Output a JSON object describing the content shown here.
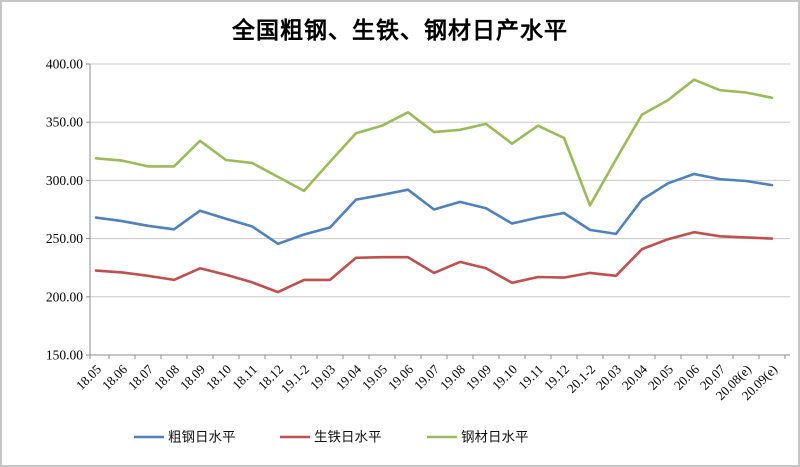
{
  "page": {
    "title": "全国粗钢、生铁、钢材日产水平"
  },
  "chart_data": {
    "type": "line",
    "title": "全国粗钢、生铁、钢材日产水平",
    "categories": [
      "18.05",
      "18.06",
      "18.07",
      "18.08",
      "18.09",
      "18.10",
      "18.11",
      "18.12",
      "19.1-2",
      "19.03",
      "19.04",
      "19.05",
      "19.06",
      "19.07",
      "19.08",
      "19.09",
      "19.10",
      "19.11",
      "19.12",
      "20.1-2",
      "20.03",
      "20.04",
      "20.05",
      "20.06",
      "20.07",
      "20.08(e)",
      "20.09(e)"
    ],
    "series": [
      {
        "name": "粗钢日水平",
        "color": "#4F81BD",
        "values": [
          268,
          265,
          261,
          258,
          274,
          267,
          260.5,
          245.5,
          253.5,
          259.5,
          283.5,
          287.5,
          292,
          275,
          281.5,
          276,
          263,
          268,
          272,
          257.5,
          254,
          283.5,
          297.5,
          305.5,
          301,
          299.5,
          296
        ]
      },
      {
        "name": "生铁日水平",
        "color": "#C0504D",
        "values": [
          222.5,
          221,
          218,
          214.5,
          224.5,
          219,
          212.5,
          204,
          214.5,
          214.5,
          233.5,
          234,
          234,
          220.5,
          230,
          224.5,
          212,
          217,
          216.5,
          220.5,
          218,
          241,
          249.5,
          255.5,
          252,
          251,
          250
        ]
      },
      {
        "name": "钢材日水平",
        "color": "#9BBB59",
        "values": [
          319,
          317,
          312,
          312,
          334,
          317.5,
          315,
          303,
          291,
          316,
          340.5,
          347,
          358.5,
          341.5,
          343.5,
          348.5,
          331.5,
          347,
          336.5,
          278.5,
          318,
          356.5,
          369,
          386.5,
          377.5,
          375.5,
          371
        ]
      }
    ],
    "xlabel": "",
    "ylabel": "",
    "ylim": [
      150,
      400
    ],
    "ytick_step": 50,
    "y_tick_labels": [
      "150.00",
      "200.00",
      "250.00",
      "300.00",
      "350.00",
      "400.00"
    ],
    "grid": true,
    "legend_position": "bottom"
  },
  "colors": {
    "grid": "#c8c8c8",
    "axis": "#8e8e8e",
    "frame_border": "#c6c6c6",
    "background": "#ffffff",
    "text": "#000000"
  }
}
